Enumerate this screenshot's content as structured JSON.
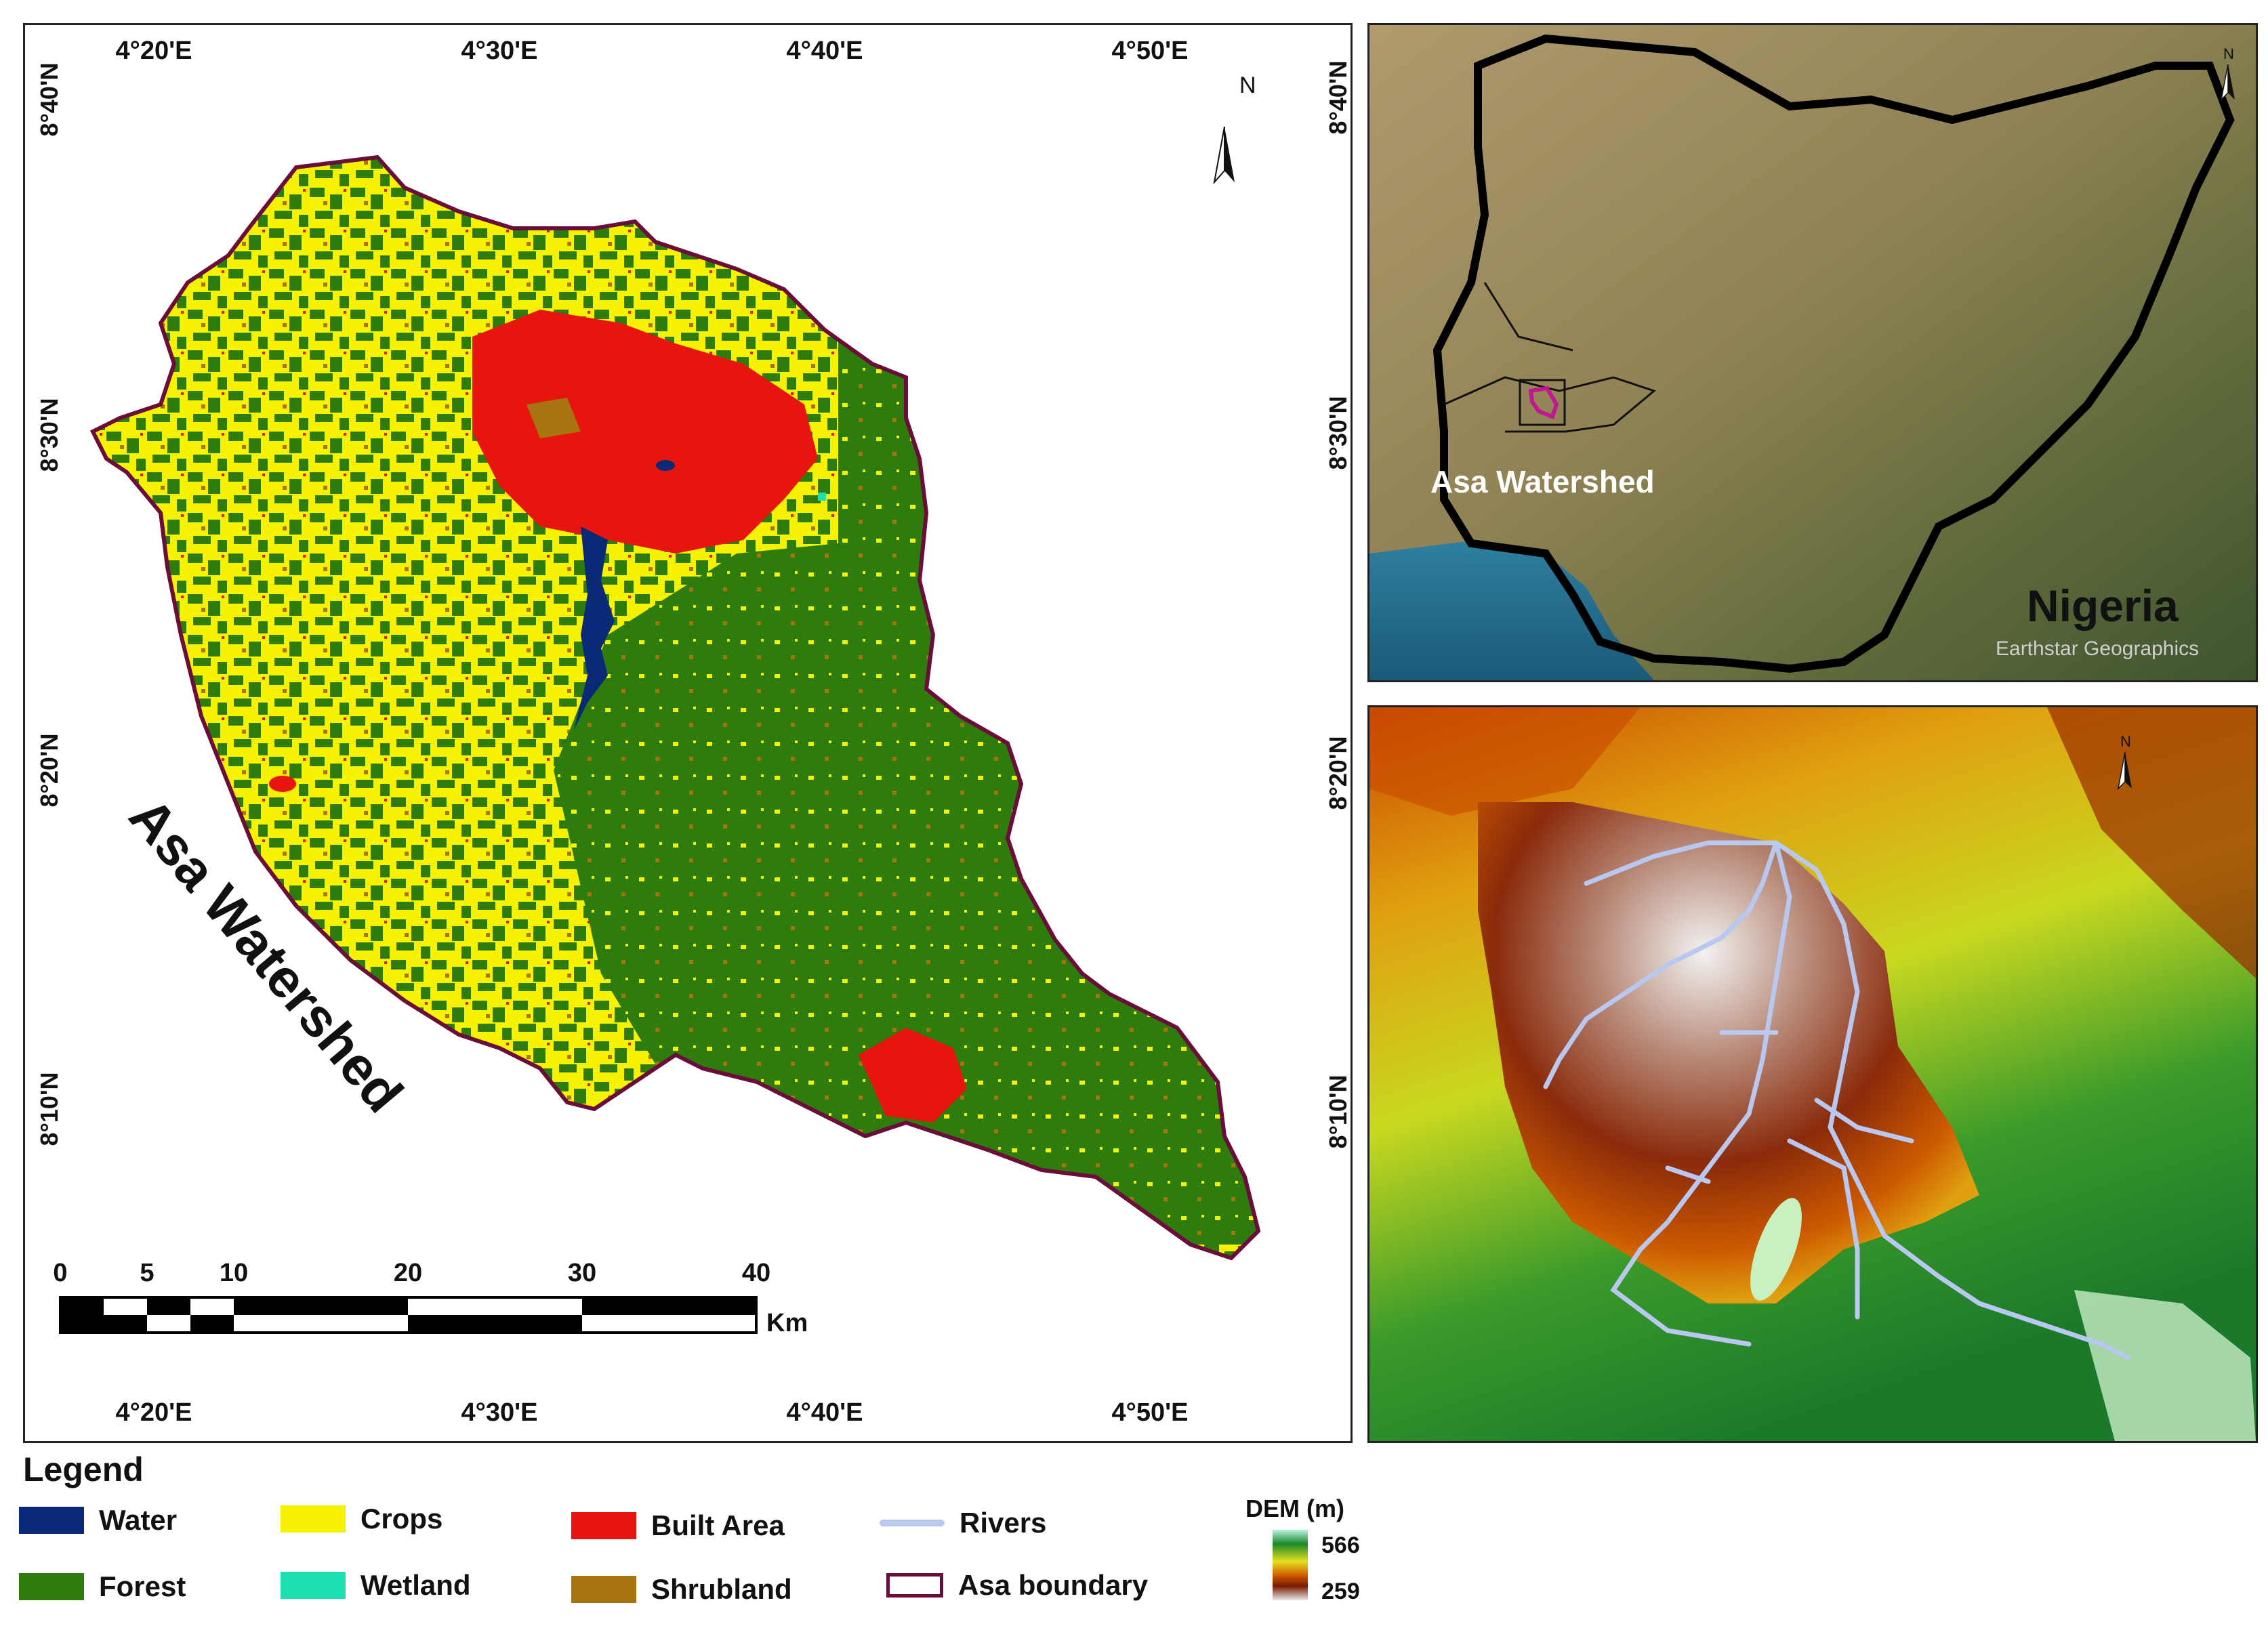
{
  "main_map": {
    "top_lon_labels": [
      "4°20'E",
      "4°30'E",
      "4°40'E",
      "4°50'E"
    ],
    "bottom_lon_labels": [
      "4°20'E",
      "4°30'E",
      "4°40'E",
      "4°50'E"
    ],
    "lat_labels": [
      "8°40'N",
      "8°30'N",
      "8°20'N",
      "8°10'N"
    ],
    "watershed_label": "Asa Watershed",
    "north_letter": "N",
    "scale_numbers": [
      "0",
      "5",
      "10",
      "20",
      "30",
      "40"
    ],
    "scale_unit": "Km"
  },
  "inset_nigeria": {
    "lat_labels": [
      "8°40'N",
      "8°30'N"
    ],
    "watershed_label": "Asa Watershed",
    "country_label": "Nigeria",
    "credit": "Earthstar Geographics",
    "north_letter": "N"
  },
  "inset_dem": {
    "lat_labels": [
      "8°20'N",
      "8°10'N"
    ],
    "north_letter": "N"
  },
  "legend": {
    "title": "Legend",
    "items": [
      {
        "label": "Water",
        "color": "#0a2a78",
        "kind": "fill"
      },
      {
        "label": "Forest",
        "color": "#2e7d0c",
        "kind": "fill"
      },
      {
        "label": "Crops",
        "color": "#f7f200",
        "kind": "fill"
      },
      {
        "label": "Wetland",
        "color": "#1de0b0",
        "kind": "fill"
      },
      {
        "label": "Built Area",
        "color": "#e8150f",
        "kind": "fill"
      },
      {
        "label": "Shrubland",
        "color": "#a87410",
        "kind": "fill"
      },
      {
        "label": "Rivers",
        "color": "#b8c8f0",
        "kind": "line"
      },
      {
        "label": "Asa boundary",
        "color": "#6a0d3a",
        "kind": "outline"
      }
    ],
    "dem": {
      "title": "DEM (m)",
      "max": "566",
      "min": "259"
    }
  }
}
